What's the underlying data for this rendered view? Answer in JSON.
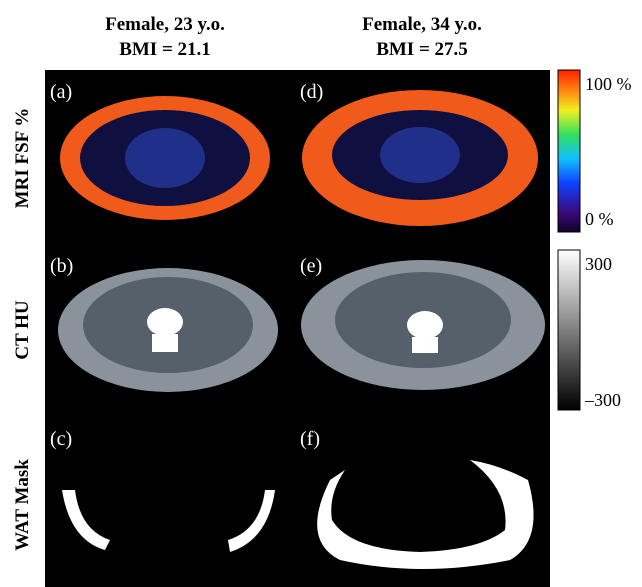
{
  "columns": [
    {
      "title": "Female, 23 y.o.",
      "subtitle": "BMI = 21.1"
    },
    {
      "title": "Female, 34 y.o.",
      "subtitle": "BMI = 27.5"
    }
  ],
  "rows": [
    {
      "label": "MRI FSF %"
    },
    {
      "label": "CT HU"
    },
    {
      "label": "WAT Mask"
    }
  ],
  "panels": [
    [
      "(a)",
      "(d)"
    ],
    [
      "(b)",
      "(e)"
    ],
    [
      "(c)",
      "(f)"
    ]
  ],
  "colorbars": [
    {
      "top": "100 %",
      "bottom": "0 %"
    },
    {
      "top": "300",
      "bottom": "–300"
    }
  ]
}
